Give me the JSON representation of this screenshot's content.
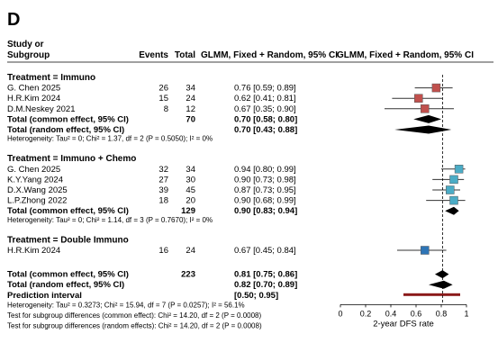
{
  "panel_label": "D",
  "header": {
    "study_line1": "Study or",
    "study_line2": "Subgroup",
    "events": "Events",
    "total": "Total",
    "col1": "GLMM, Fixed + Random, 95% CI",
    "col2": "GLMM, Fixed + Random, 95% CI"
  },
  "axis": {
    "xlabel": "2-year DFS rate",
    "ticks": [
      "0",
      "0.2",
      "0.4",
      "0.6",
      "0.8",
      "1"
    ]
  },
  "colors": {
    "immuno": "#c0504d",
    "immuno_chemo": "#4bacc6",
    "double_immuno": "#2e75b6",
    "ci_line": "#333333",
    "diamond": "#000000",
    "prediction": "#8b1a1a"
  },
  "chart_data": {
    "type": "forest",
    "xlabel": "2-year DFS rate",
    "xlim": [
      0,
      1
    ],
    "reference_line": 0.81,
    "groups": [
      {
        "title": "Treatment = Immuno",
        "studies": [
          {
            "name": "G. Chen 2025",
            "events": "26",
            "total": "34",
            "ci_text": "0.76 [0.59; 0.89]",
            "est": 0.76,
            "lo": 0.59,
            "hi": 0.89
          },
          {
            "name": "H.R.Kim 2024",
            "events": "15",
            "total": "24",
            "ci_text": "0.62 [0.41; 0.81]",
            "est": 0.62,
            "lo": 0.41,
            "hi": 0.81
          },
          {
            "name": "D.M.Neskey 2021",
            "events": "8",
            "total": "12",
            "ci_text": "0.67 [0.35; 0.90]",
            "est": 0.67,
            "lo": 0.35,
            "hi": 0.9
          }
        ],
        "common": {
          "label": "Total (common effect, 95% CI)",
          "total": "70",
          "ci_text": "0.70 [0.58; 0.80]",
          "est": 0.7,
          "lo": 0.58,
          "hi": 0.8
        },
        "random": {
          "label": "Total (random effect, 95% CI)",
          "total": "",
          "ci_text": "0.70 [0.43; 0.88]",
          "est": 0.7,
          "lo": 0.43,
          "hi": 0.88
        },
        "heterogeneity": "Heterogeneity: Tau² = 0; Chi² = 1.37, df = 2 (P = 0.5050); I² = 0%"
      },
      {
        "title": "Treatment = Immuno + Chemo",
        "studies": [
          {
            "name": "G. Chen 2025",
            "events": "32",
            "total": "34",
            "ci_text": "0.94 [0.80; 0.99]",
            "est": 0.94,
            "lo": 0.8,
            "hi": 0.99
          },
          {
            "name": "K.Y.Yang 2024",
            "events": "27",
            "total": "30",
            "ci_text": "0.90 [0.73; 0.98]",
            "est": 0.9,
            "lo": 0.73,
            "hi": 0.98
          },
          {
            "name": "D.X.Wang 2025",
            "events": "39",
            "total": "45",
            "ci_text": "0.87 [0.73; 0.95]",
            "est": 0.87,
            "lo": 0.73,
            "hi": 0.95
          },
          {
            "name": "L.P.Zhong 2022",
            "events": "18",
            "total": "20",
            "ci_text": "0.90 [0.68; 0.99]",
            "est": 0.9,
            "lo": 0.68,
            "hi": 0.99
          }
        ],
        "common": {
          "label": "Total (common effect, 95% CI)",
          "total": "129",
          "ci_text": "0.90 [0.83; 0.94]",
          "est": 0.9,
          "lo": 0.83,
          "hi": 0.94
        },
        "random": null,
        "heterogeneity": "Heterogeneity: Tau² = 0; Chi² = 1.14, df = 3 (P = 0.7670); I² = 0%"
      },
      {
        "title": "Treatment = Double Immuno",
        "studies": [
          {
            "name": "H.R.Kim 2024",
            "events": "16",
            "total": "24",
            "ci_text": "0.67 [0.45; 0.84]",
            "est": 0.67,
            "lo": 0.45,
            "hi": 0.84
          }
        ],
        "common": null,
        "random": null,
        "heterogeneity": ""
      }
    ],
    "overall": {
      "common": {
        "label": "Total (common effect, 95% CI)",
        "total": "223",
        "ci_text": "0.81 [0.75; 0.86]",
        "est": 0.81,
        "lo": 0.75,
        "hi": 0.86
      },
      "random": {
        "label": "Total (random effect, 95% CI)",
        "total": "",
        "ci_text": "0.82 [0.70; 0.89]",
        "est": 0.82,
        "lo": 0.7,
        "hi": 0.89
      },
      "prediction": {
        "label": "Prediction interval",
        "ci_text": "[0.50; 0.95]",
        "lo": 0.5,
        "hi": 0.95
      },
      "heterogeneity": "Heterogeneity: Tau² = 0.3273; Chi² = 15.94, df = 7 (P = 0.0257); I² = 56.1%",
      "subgroup_common": "Test for subgroup differences (common effect): Chi² = 14.20, df = 2 (P = 0.0008)",
      "subgroup_random": "Test for subgroup differences (random effects): Chi² = 14.20, df = 2 (P = 0.0008)"
    }
  }
}
